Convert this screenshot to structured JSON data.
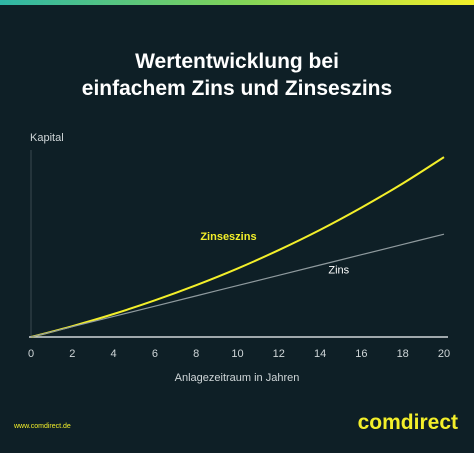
{
  "colors": {
    "background": "#0e1f26",
    "accent": "#f3ef2a",
    "simple_line": "#8f9a9e",
    "text": "#ffffff",
    "axis": "#cfd6d8"
  },
  "header": {
    "title_line1": "Wertentwicklung bei",
    "title_line2": "einfachem Zins und Zinseszins"
  },
  "footer": {
    "url": "www.comdirect.de",
    "brand": "comdirect"
  },
  "chart_data": {
    "type": "line",
    "ylabel": "Kapital",
    "xlabel": "Anlagezeitraum in Jahren",
    "xlim": [
      0,
      20
    ],
    "ylim": [
      0,
      1
    ],
    "xticks": [
      "0",
      "2",
      "4",
      "6",
      "8",
      "10",
      "12",
      "14",
      "16",
      "18",
      "20"
    ],
    "grid": false,
    "series": [
      {
        "name": "Zinseszins",
        "color": "#f3ef2a",
        "x": [
          0,
          2,
          4,
          6,
          8,
          10,
          12,
          14,
          16,
          18,
          20
        ],
        "values": [
          0.0,
          0.058,
          0.123,
          0.196,
          0.277,
          0.366,
          0.465,
          0.573,
          0.692,
          0.821,
          0.962
        ]
      },
      {
        "name": "Zins",
        "color": "#8f9a9e",
        "x": [
          0,
          2,
          4,
          6,
          8,
          10,
          12,
          14,
          16,
          18,
          20
        ],
        "values": [
          0.0,
          0.055,
          0.11,
          0.165,
          0.22,
          0.275,
          0.33,
          0.385,
          0.44,
          0.495,
          0.55
        ]
      }
    ]
  }
}
